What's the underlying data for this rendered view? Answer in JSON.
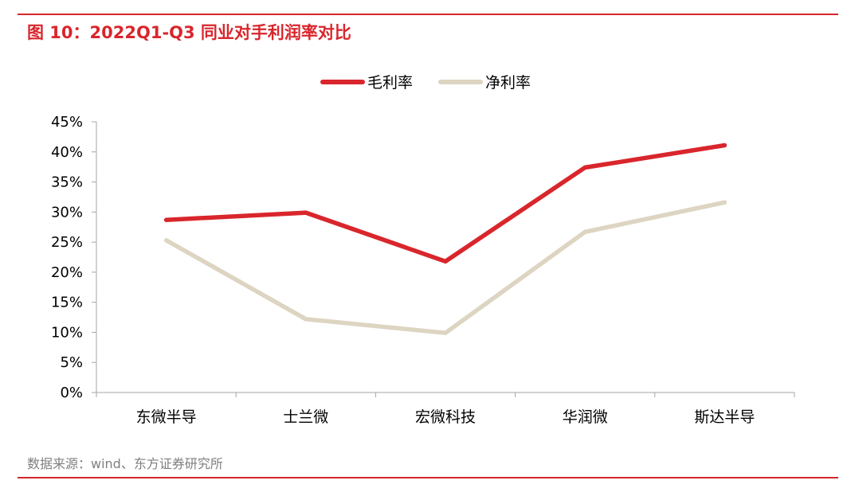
{
  "figure": {
    "title": "图 10：2022Q1-Q3 同业对手利润率对比",
    "source": "数据来源：wind、东方证券研究所",
    "accent_color": "#d9262c"
  },
  "chart_data": {
    "type": "line",
    "categories": [
      "东微半导",
      "士兰微",
      "宏微科技",
      "华润微",
      "斯达半导"
    ],
    "series": [
      {
        "name": "毛利率",
        "color": "#d9262c",
        "values": [
          28.7,
          29.9,
          21.8,
          37.4,
          41.1
        ]
      },
      {
        "name": "净利率",
        "color": "#ddd5c2",
        "values": [
          25.3,
          12.2,
          9.9,
          26.7,
          31.6
        ]
      }
    ],
    "y_ticks": [
      "0%",
      "5%",
      "10%",
      "15%",
      "20%",
      "25%",
      "30%",
      "35%",
      "40%",
      "45%"
    ],
    "ylim": [
      0,
      45
    ],
    "y_unit": "%",
    "legend_position": "top-center",
    "grid": false
  }
}
